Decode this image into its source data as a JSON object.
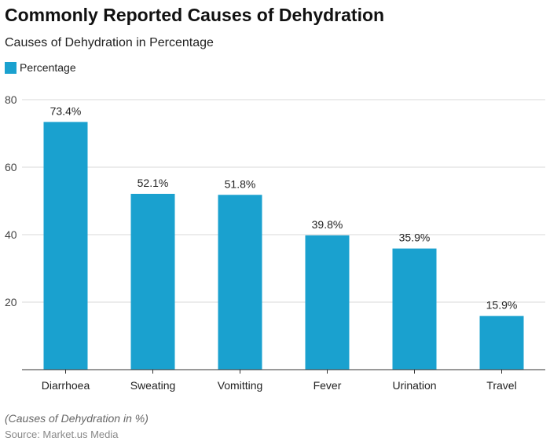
{
  "title": "Commonly Reported Causes of Dehydration",
  "subtitle": "Causes of Dehydration in Percentage",
  "note": "(Causes of Dehydration in %)",
  "source": "Source: Market.us Media",
  "colors": {
    "bar": "#1aa1cf"
  },
  "chart_data": {
    "type": "bar",
    "title": "Commonly Reported Causes of Dehydration",
    "subtitle": "Causes of Dehydration in Percentage",
    "categories": [
      "Diarrhoea",
      "Sweating",
      "Vomitting",
      "Fever",
      "Urination",
      "Travel"
    ],
    "series": [
      {
        "name": "Percentage",
        "values": [
          73.4,
          52.1,
          51.8,
          39.8,
          35.9,
          15.9
        ]
      }
    ],
    "data_labels": [
      "73.4%",
      "52.1%",
      "51.8%",
      "39.8%",
      "35.9%",
      "15.9%"
    ],
    "yticks": [
      20,
      40,
      60,
      80
    ],
    "ylim": [
      0,
      80
    ],
    "grid": true,
    "legend": "top-left"
  }
}
